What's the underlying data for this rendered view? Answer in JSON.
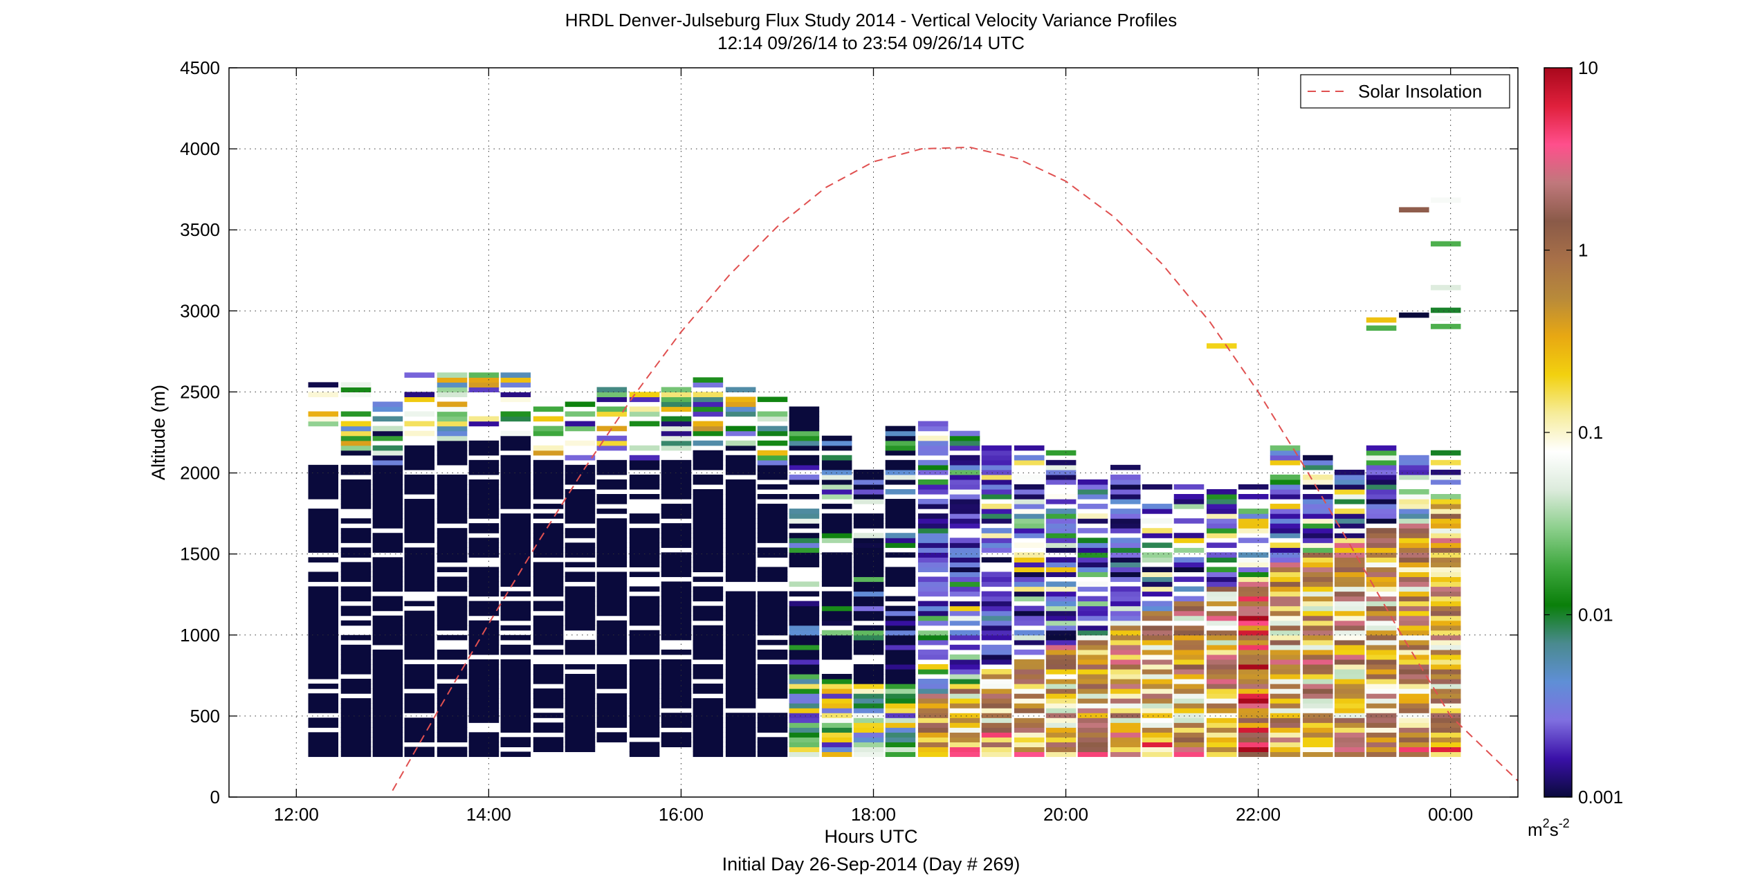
{
  "chart_data": {
    "type": "heatmap",
    "title": "HRDL Denver-Julseburg Flux Study 2014 - Vertical Velocity Variance Profiles",
    "subtitle": "12:14 09/26/14 to 23:54 09/26/14  UTC",
    "xlabel": "Hours UTC",
    "xlabel2": "Initial Day 26-Sep-2014 (Day # 269)",
    "ylabel": "Altitude (m)",
    "xlim": [
      11.3,
      24.7
    ],
    "ylim": [
      0,
      4500
    ],
    "grid": true,
    "x_ticks": [
      {
        "value": 12,
        "label": "12:00"
      },
      {
        "value": 14,
        "label": "14:00"
      },
      {
        "value": 16,
        "label": "16:00"
      },
      {
        "value": 18,
        "label": "18:00"
      },
      {
        "value": 20,
        "label": "20:00"
      },
      {
        "value": 22,
        "label": "22:00"
      },
      {
        "value": 24,
        "label": "00:00"
      }
    ],
    "y_ticks": [
      0,
      500,
      1000,
      1500,
      2000,
      2500,
      3000,
      3500,
      4000,
      4500
    ],
    "colorbar": {
      "scale": "log",
      "range": [
        0.001,
        10
      ],
      "ticks": [
        {
          "value": 0.001,
          "label": "0.001"
        },
        {
          "value": 0.01,
          "label": "0.01"
        },
        {
          "value": 0.1,
          "label": "0.1"
        },
        {
          "value": 1,
          "label": "1"
        },
        {
          "value": 10,
          "label": "10"
        }
      ],
      "unit_base": "m",
      "unit_exp1": "2",
      "unit_mid": "s",
      "unit_exp2": "-2",
      "colors": [
        "#0a0a3c",
        "#3a10a8",
        "#7f6fe0",
        "#5f8fd6",
        "#4a8a8f",
        "#0a7f0a",
        "#3fa83f",
        "#8ccf8c",
        "#dcebdc",
        "#ffffff",
        "#f6ec9a",
        "#f2d10f",
        "#e8a812",
        "#b88a3a",
        "#a87048",
        "#8a5a48",
        "#c0787c",
        "#ff4f8c",
        "#e0203c",
        "#a8081c"
      ]
    },
    "legend": {
      "position": "top-right",
      "entries": [
        {
          "name": "Solar Insolation",
          "style": "dashed",
          "color": "#e05050"
        }
      ]
    },
    "series": [
      {
        "name": "Solar Insolation",
        "type": "line",
        "x": [
          13.0,
          13.5,
          14.0,
          14.5,
          15.0,
          15.5,
          16.0,
          16.5,
          17.0,
          17.5,
          18.0,
          18.5,
          19.0,
          19.5,
          20.0,
          20.5,
          21.0,
          21.5,
          22.0,
          22.5,
          23.0,
          23.5,
          24.0,
          24.7
        ],
        "y": [
          40,
          560,
          1070,
          1560,
          2030,
          2470,
          2870,
          3220,
          3520,
          3760,
          3920,
          4000,
          4010,
          3940,
          3800,
          3580,
          3290,
          2930,
          2500,
          2020,
          1510,
          990,
          500,
          100
        ]
      }
    ],
    "profiles": [
      {
        "t": 12.28,
        "top": 2540,
        "regime": "night"
      },
      {
        "t": 12.62,
        "top": 2530,
        "regime": "night"
      },
      {
        "t": 12.95,
        "top": 2420,
        "regime": "night"
      },
      {
        "t": 13.28,
        "top": 2600,
        "regime": "night"
      },
      {
        "t": 13.62,
        "top": 2600,
        "regime": "night"
      },
      {
        "t": 13.95,
        "top": 2600,
        "regime": "night"
      },
      {
        "t": 14.28,
        "top": 2630,
        "regime": "night"
      },
      {
        "t": 14.62,
        "top": 2480,
        "regime": "night"
      },
      {
        "t": 14.95,
        "top": 2420,
        "regime": "night"
      },
      {
        "t": 15.28,
        "top": 2510,
        "regime": "night"
      },
      {
        "t": 15.62,
        "top": 2470,
        "regime": "night"
      },
      {
        "t": 15.95,
        "top": 2510,
        "regime": "night"
      },
      {
        "t": 16.28,
        "top": 2580,
        "regime": "night"
      },
      {
        "t": 16.62,
        "top": 2560,
        "regime": "night"
      },
      {
        "t": 16.95,
        "top": 2440,
        "regime": "night"
      },
      {
        "t": 17.28,
        "top": 2380,
        "regime": "transition"
      },
      {
        "t": 17.62,
        "top": 2210,
        "regime": "transition"
      },
      {
        "t": 17.95,
        "top": 2010,
        "regime": "transition"
      },
      {
        "t": 18.28,
        "top": 2260,
        "regime": "transition"
      },
      {
        "t": 18.62,
        "top": 2340,
        "regime": "day"
      },
      {
        "t": 18.95,
        "top": 2240,
        "regime": "day"
      },
      {
        "t": 19.28,
        "top": 2140,
        "regime": "day"
      },
      {
        "t": 19.62,
        "top": 2140,
        "regime": "day"
      },
      {
        "t": 19.95,
        "top": 2110,
        "regime": "day"
      },
      {
        "t": 20.28,
        "top": 1930,
        "regime": "day"
      },
      {
        "t": 20.62,
        "top": 2020,
        "regime": "day"
      },
      {
        "t": 20.95,
        "top": 1950,
        "regime": "day"
      },
      {
        "t": 21.28,
        "top": 1920,
        "regime": "day"
      },
      {
        "t": 21.62,
        "top": 1920,
        "regime": "day"
      },
      {
        "t": 21.95,
        "top": 1920,
        "regime": "day"
      },
      {
        "t": 22.28,
        "top": 2150,
        "regime": "day"
      },
      {
        "t": 22.62,
        "top": 2110,
        "regime": "day"
      },
      {
        "t": 22.95,
        "top": 2000,
        "regime": "day"
      },
      {
        "t": 23.28,
        "top": 2150,
        "regime": "day"
      },
      {
        "t": 23.62,
        "top": 2090,
        "regime": "day"
      },
      {
        "t": 23.95,
        "top": 2110,
        "regime": "day"
      }
    ],
    "isolated_points": [
      {
        "t": 21.62,
        "alt": 2770,
        "value": 0.2
      },
      {
        "t": 23.28,
        "alt": 2930,
        "value": 0.25
      },
      {
        "t": 23.28,
        "alt": 2880,
        "value": 0.02
      },
      {
        "t": 23.62,
        "alt": 2960,
        "value": 0.001
      },
      {
        "t": 23.62,
        "alt": 3610,
        "value": 1.5
      },
      {
        "t": 23.95,
        "alt": 3670,
        "value": 0.07
      },
      {
        "t": 23.95,
        "alt": 3400,
        "value": 0.02
      },
      {
        "t": 23.95,
        "alt": 3130,
        "value": 0.05
      },
      {
        "t": 23.95,
        "alt": 2990,
        "value": 0.01
      },
      {
        "t": 23.95,
        "alt": 2940,
        "value": 0.07
      },
      {
        "t": 23.95,
        "alt": 2890,
        "value": 0.02
      }
    ]
  }
}
